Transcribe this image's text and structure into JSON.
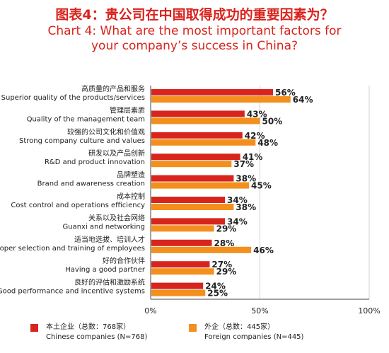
{
  "title_zh": "图表4：贵公司在中国取得成功的重要因素为？",
  "title_en_line1": "Chart 4: What are the most important factors for",
  "title_en_line2": "your company’s success in China?",
  "colors": {
    "chinese": "#d7251d",
    "foreign": "#f3901d"
  },
  "legend": {
    "chinese_zh": "本土企业（总数：768家）",
    "chinese_en": "Chinese companies (N=768)",
    "foreign_zh": "外企（总数：445家）",
    "foreign_en": "Foreign companies (N=445)"
  },
  "chart_data": {
    "type": "bar",
    "orientation": "horizontal",
    "categories_zh": [
      "高质量的产品和服务",
      "管理层素质",
      "较强的公司文化和价值观",
      "研发以及产品创新",
      "品牌塑造",
      "成本控制",
      "关系以及社会网络",
      "适当地选拔、培训人才",
      "好的合作伙伴",
      "良好的评估和激励系统"
    ],
    "categories": [
      "Superior quality of the products/services",
      "Quality of the management team",
      "Strong company culture and values",
      "R&D and product innovation",
      "Brand and awareness creation",
      "Cost control and operations efficiency",
      "Guanxi and networking",
      "Proper selection and training of employees",
      "Having a good partner",
      "Good performance and incentive systems"
    ],
    "series": [
      {
        "name": "Chinese companies (N=768)",
        "values": [
          56,
          43,
          42,
          41,
          38,
          34,
          34,
          28,
          27,
          24
        ]
      },
      {
        "name": "Foreign companies (N=445)",
        "values": [
          64,
          50,
          48,
          37,
          45,
          38,
          29,
          46,
          29,
          25
        ]
      }
    ],
    "xlim": [
      0,
      100
    ],
    "xticks": [
      "0%",
      "50%",
      "100%"
    ],
    "value_suffix": "%"
  }
}
